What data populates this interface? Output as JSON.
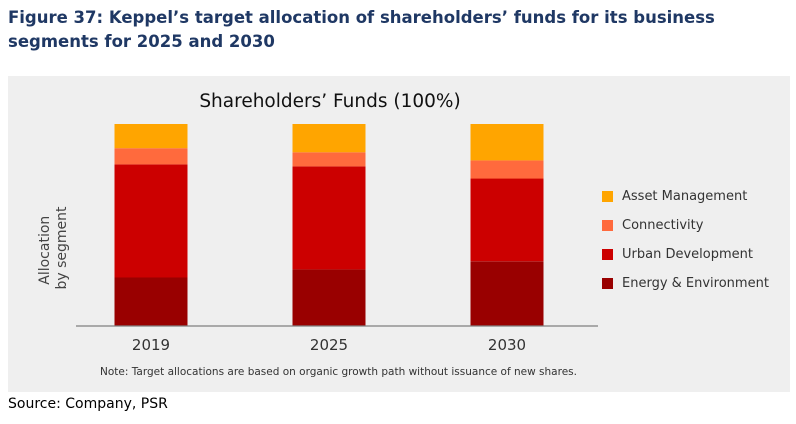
{
  "figure_title": "Figure 37: Keppel’s target allocation of shareholders’ funds for its business segments for 2025 and 2030",
  "source": "Source: Company, PSR",
  "chart_data": {
    "type": "bar",
    "stacked": true,
    "title": "Shareholders’ Funds (100%)",
    "ylabel": "Allocation by segment",
    "ylabel_lines": [
      "Allocation",
      "by segment"
    ],
    "xlabel": "",
    "categories": [
      "2019",
      "2025",
      "2030"
    ],
    "ylim": [
      0,
      100
    ],
    "grid": false,
    "legend_position": "right",
    "series": [
      {
        "name": "Energy & Environment",
        "color": "#990000",
        "values": [
          24,
          28,
          32
        ]
      },
      {
        "name": "Urban Development",
        "color": "#cc0000",
        "values": [
          56,
          51,
          41
        ]
      },
      {
        "name": "Connectivity",
        "color": "#ff6a3d",
        "values": [
          8,
          7,
          9
        ]
      },
      {
        "name": "Asset Management",
        "color": "#ffa500",
        "values": [
          12,
          14,
          18
        ]
      }
    ],
    "note": "Note: Target allocations are based on organic growth path without issuance of new shares."
  }
}
